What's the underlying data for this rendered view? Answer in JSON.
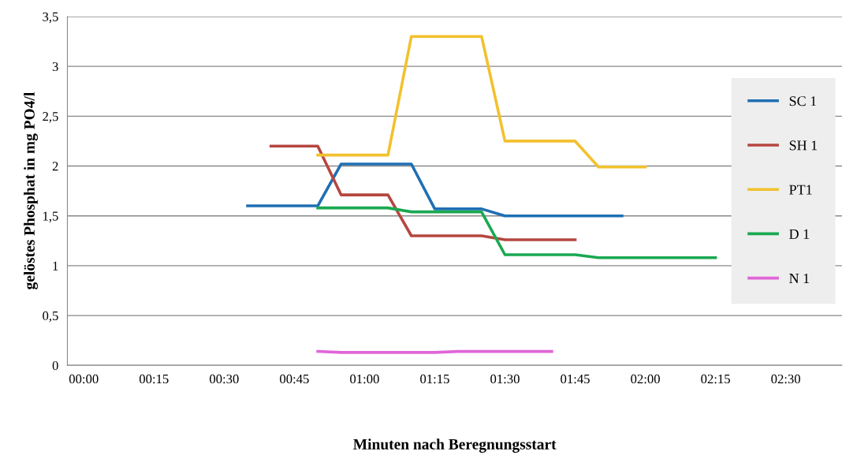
{
  "chart_data": {
    "type": "line",
    "xlabel": "Minuten nach Beregnungsstart",
    "ylabel": "gelöstes Phosphat in mg PO4/l",
    "xlim": [
      -3.5,
      162
    ],
    "xticks": [
      {
        "value": 0,
        "label": "00:00"
      },
      {
        "value": 15,
        "label": "00:15"
      },
      {
        "value": 30,
        "label": "00:30"
      },
      {
        "value": 45,
        "label": "00:45"
      },
      {
        "value": 60,
        "label": "01:00"
      },
      {
        "value": 75,
        "label": "01:15"
      },
      {
        "value": 90,
        "label": "01:30"
      },
      {
        "value": 105,
        "label": "01:45"
      },
      {
        "value": 120,
        "label": "02:00"
      },
      {
        "value": 135,
        "label": "02:15"
      },
      {
        "value": 150,
        "label": "02:30"
      }
    ],
    "ylim": [
      0,
      3.5
    ],
    "yticks": [
      0,
      {
        "value": 0.5,
        "label": "0,5"
      },
      1,
      {
        "value": 1.5,
        "label": "1,5"
      },
      2,
      {
        "value": 2.5,
        "label": "2,5"
      },
      3,
      {
        "value": 3.5,
        "label": "3,5"
      }
    ],
    "grid": "y",
    "legend": "right",
    "marker": "none",
    "line_style": "solid",
    "series": [
      {
        "name": "SC 1",
        "color": "#1f6fb4",
        "x": [
          35,
          50,
          55,
          70,
          75,
          85,
          90,
          115
        ],
        "values": [
          1.6,
          1.6,
          2.02,
          2.02,
          1.57,
          1.57,
          1.5,
          1.5
        ]
      },
      {
        "name": "SH 1",
        "color": "#b5473f",
        "x": [
          40,
          50,
          55,
          65,
          70,
          85,
          90,
          105
        ],
        "values": [
          2.2,
          2.2,
          1.71,
          1.71,
          1.3,
          1.3,
          1.26,
          1.26
        ]
      },
      {
        "name": "PT1",
        "color": "#f2c12e",
        "x": [
          50,
          65,
          70,
          85,
          90,
          105,
          110,
          120
        ],
        "values": [
          2.11,
          2.11,
          3.3,
          3.3,
          2.25,
          2.25,
          1.99,
          1.99
        ]
      },
      {
        "name": "D 1",
        "color": "#1aa851",
        "x": [
          50,
          65,
          70,
          85,
          90,
          105,
          110,
          135
        ],
        "values": [
          1.58,
          1.58,
          1.54,
          1.54,
          1.11,
          1.11,
          1.08,
          1.08
        ]
      },
      {
        "name": "N 1",
        "color": "#e066d8",
        "x": [
          50,
          55,
          75,
          80,
          100
        ],
        "values": [
          0.14,
          0.13,
          0.13,
          0.14,
          0.14
        ]
      }
    ]
  }
}
